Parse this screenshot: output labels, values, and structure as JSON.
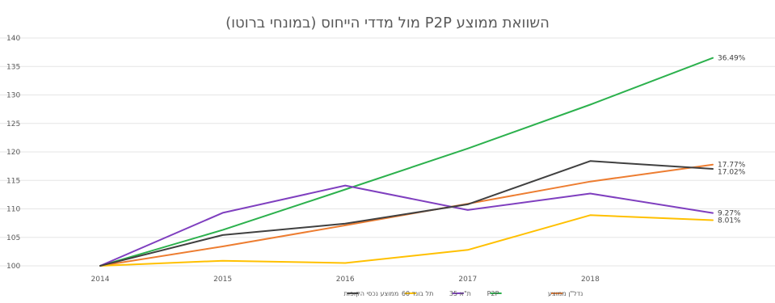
{
  "chart_data": {
    "type": "line",
    "title": "השוואת ממוצע P2P מול מדדי הייחוס (במונחי ברוטו)",
    "xlabel": "",
    "ylabel": "",
    "categories": [
      "2014",
      "2015",
      "2016",
      "2017",
      "2018",
      ""
    ],
    "ylim": [
      100,
      140
    ],
    "yticks": [
      100,
      105,
      110,
      115,
      120,
      125,
      130,
      135,
      140
    ],
    "grid": true,
    "legend_position": "bottom",
    "series": [
      {
        "name": "נדל\"ן ממוצע",
        "color": "#ed7d31",
        "values": [
          100,
          103.4,
          107.1,
          110.9,
          114.8,
          117.77
        ],
        "end_label": "17.77%"
      },
      {
        "name": "P2P",
        "color": "#2cb14d",
        "values": [
          100,
          106.3,
          113.4,
          120.6,
          128.3,
          136.49
        ],
        "end_label": "36.49%"
      },
      {
        "name": "ת\"א 35",
        "color": "#7f3fbf",
        "values": [
          100,
          109.3,
          114.1,
          109.8,
          112.7,
          109.27
        ],
        "end_label": "9.27%"
      },
      {
        "name": "תל בונד 60",
        "color": "#ffc000",
        "values": [
          100,
          100.9,
          100.5,
          102.8,
          108.9,
          108.01
        ],
        "end_label": "8.01%"
      },
      {
        "name": "ממוצע נכסי הקופות",
        "color": "#404040",
        "values": [
          100,
          105.4,
          107.4,
          110.8,
          118.4,
          117.02
        ],
        "end_label": "17.02%"
      }
    ]
  }
}
